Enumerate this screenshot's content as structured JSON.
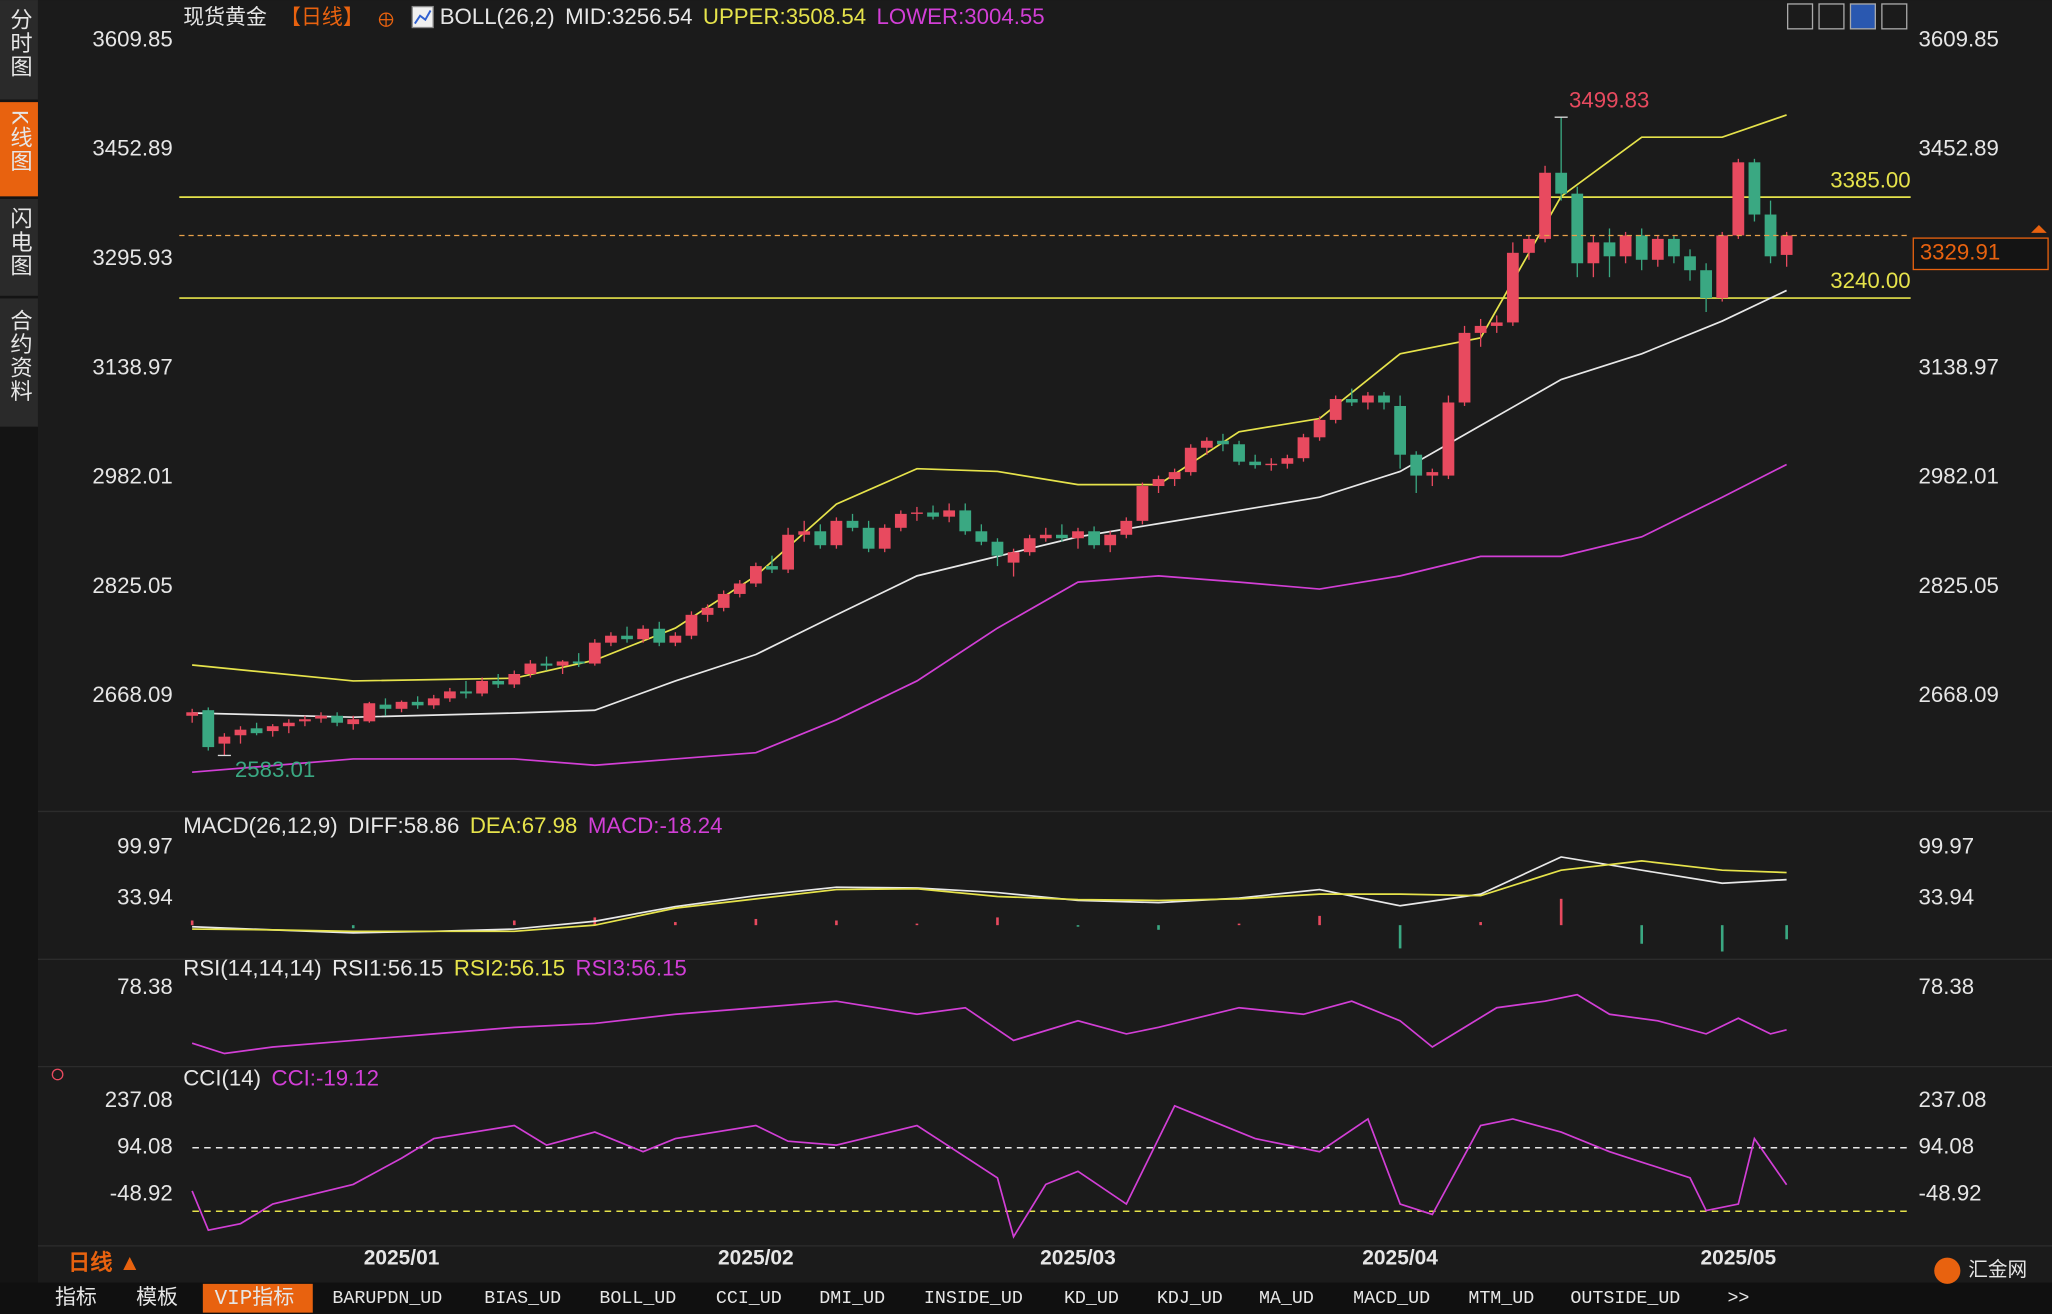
{
  "header": {
    "symbol": "现货黄金",
    "period": "【日线】"
  },
  "sidebar": [
    "分时图",
    "K线图",
    "闪电图",
    "合约资料"
  ],
  "footer": {
    "period": "日线 ▲",
    "logo": "汇金网",
    "tabs": [
      "指标",
      "模板",
      "VIP指标",
      "BARUPDN_UD",
      "BIAS_UD",
      "BOLL_UD",
      "CCI_UD",
      "DMI_UD",
      "INSIDE_UD",
      "KD_UD",
      "KDJ_UD",
      "MA_UD",
      "MACD_UD",
      "MTM_UD",
      "OUTSIDE_UD",
      ">>"
    ]
  },
  "chart_data": [
    {
      "type": "candlestick",
      "title": "BOLL(26,2)",
      "up_color": "#e84a5f",
      "down_color": "#3aa882",
      "xlim": [
        -0.8,
        106.7
      ],
      "xticks": [
        {
          "value": 13,
          "label": "2025/01"
        },
        {
          "value": 35,
          "label": "2025/02"
        },
        {
          "value": 55,
          "label": "2025/03"
        },
        {
          "value": 75,
          "label": "2025/04"
        },
        {
          "value": 96,
          "label": "2025/05"
        }
      ],
      "ylim": [
        2512.0,
        3630.5
      ],
      "yticks": [
        3609.85,
        3452.89,
        3295.93,
        3138.97,
        2982.01,
        2825.05,
        2668.09
      ],
      "high_label": 3499.83,
      "low_label": 2583.01,
      "levels": [
        {
          "value": 3385,
          "label": "3385.00"
        },
        {
          "value": 3240,
          "label": "3240.00"
        }
      ],
      "level_color": "#e6e34b",
      "candles": [
        [
          2640,
          2650,
          2630,
          2645
        ],
        [
          2648,
          2652,
          2590,
          2595
        ],
        [
          2600,
          2615,
          2583.01,
          2610
        ],
        [
          2612,
          2625,
          2600,
          2620
        ],
        [
          2622,
          2630,
          2612,
          2615
        ],
        [
          2618,
          2628,
          2610,
          2625
        ],
        [
          2625,
          2635,
          2615,
          2630
        ],
        [
          2632,
          2640,
          2625,
          2635
        ],
        [
          2636,
          2645,
          2630,
          2640
        ],
        [
          2640,
          2645,
          2625,
          2630
        ],
        [
          2628,
          2640,
          2620,
          2635
        ],
        [
          2632,
          2660,
          2630,
          2658
        ],
        [
          2656,
          2665,
          2640,
          2650
        ],
        [
          2650,
          2662,
          2645,
          2660
        ],
        [
          2660,
          2668,
          2650,
          2655
        ],
        [
          2655,
          2670,
          2650,
          2665
        ],
        [
          2665,
          2680,
          2660,
          2675
        ],
        [
          2675,
          2690,
          2665,
          2672
        ],
        [
          2672,
          2695,
          2668,
          2690
        ],
        [
          2690,
          2700,
          2680,
          2685
        ],
        [
          2685,
          2705,
          2680,
          2700
        ],
        [
          2700,
          2720,
          2695,
          2715
        ],
        [
          2715,
          2725,
          2705,
          2712
        ],
        [
          2712,
          2720,
          2700,
          2718
        ],
        [
          2718,
          2730,
          2710,
          2715
        ],
        [
          2715,
          2750,
          2712,
          2745
        ],
        [
          2745,
          2760,
          2740,
          2755
        ],
        [
          2755,
          2768,
          2745,
          2750
        ],
        [
          2750,
          2770,
          2745,
          2765
        ],
        [
          2765,
          2775,
          2740,
          2745
        ],
        [
          2745,
          2760,
          2740,
          2755
        ],
        [
          2755,
          2790,
          2750,
          2785
        ],
        [
          2785,
          2800,
          2775,
          2795
        ],
        [
          2795,
          2820,
          2790,
          2815
        ],
        [
          2815,
          2835,
          2810,
          2830
        ],
        [
          2830,
          2860,
          2825,
          2855
        ],
        [
          2855,
          2870,
          2845,
          2850
        ],
        [
          2850,
          2910,
          2845,
          2900
        ],
        [
          2900,
          2920,
          2890,
          2905
        ],
        [
          2905,
          2915,
          2880,
          2885
        ],
        [
          2885,
          2925,
          2880,
          2920
        ],
        [
          2920,
          2930,
          2905,
          2910
        ],
        [
          2910,
          2920,
          2875,
          2880
        ],
        [
          2880,
          2915,
          2875,
          2910
        ],
        [
          2910,
          2935,
          2905,
          2930
        ],
        [
          2930,
          2940,
          2920,
          2932
        ],
        [
          2932,
          2942,
          2922,
          2926
        ],
        [
          2926,
          2945,
          2918,
          2935
        ],
        [
          2935,
          2945,
          2900,
          2905
        ],
        [
          2905,
          2915,
          2885,
          2890
        ],
        [
          2890,
          2895,
          2855,
          2870
        ],
        [
          2860,
          2880,
          2840,
          2875
        ],
        [
          2875,
          2900,
          2870,
          2895
        ],
        [
          2895,
          2910,
          2890,
          2900
        ],
        [
          2900,
          2915,
          2890,
          2895
        ],
        [
          2895,
          2910,
          2880,
          2905
        ],
        [
          2905,
          2912,
          2880,
          2885
        ],
        [
          2885,
          2905,
          2875,
          2900
        ],
        [
          2900,
          2925,
          2895,
          2920
        ],
        [
          2920,
          2975,
          2915,
          2970
        ],
        [
          2970,
          2985,
          2960,
          2980
        ],
        [
          2980,
          2995,
          2970,
          2990
        ],
        [
          2990,
          3030,
          2985,
          3025
        ],
        [
          3025,
          3040,
          3015,
          3035
        ],
        [
          3035,
          3045,
          3020,
          3030
        ],
        [
          3030,
          3035,
          3000,
          3005
        ],
        [
          3005,
          3015,
          2995,
          3000
        ],
        [
          3000,
          3010,
          2992,
          3002
        ],
        [
          3002,
          3015,
          2995,
          3010
        ],
        [
          3010,
          3045,
          3005,
          3040
        ],
        [
          3040,
          3070,
          3035,
          3065
        ],
        [
          3065,
          3100,
          3060,
          3095
        ],
        [
          3095,
          3110,
          3085,
          3090
        ],
        [
          3090,
          3105,
          3080,
          3100
        ],
        [
          3100,
          3105,
          3080,
          3090
        ],
        [
          3085,
          3100,
          2995,
          3015
        ],
        [
          3015,
          3020,
          2960,
          2985
        ],
        [
          2985,
          2995,
          2970,
          2990
        ],
        [
          2985,
          3100,
          2980,
          3090
        ],
        [
          3090,
          3200,
          3085,
          3190
        ],
        [
          3190,
          3210,
          3170,
          3200
        ],
        [
          3200,
          3215,
          3190,
          3205
        ],
        [
          3205,
          3320,
          3200,
          3305
        ],
        [
          3305,
          3330,
          3295,
          3325
        ],
        [
          3325,
          3430,
          3320,
          3420
        ],
        [
          3420,
          3499.83,
          3380,
          3390
        ],
        [
          3390,
          3400,
          3270,
          3290
        ],
        [
          3290,
          3330,
          3270,
          3320
        ],
        [
          3320,
          3340,
          3270,
          3300
        ],
        [
          3300,
          3335,
          3290,
          3330
        ],
        [
          3330,
          3340,
          3280,
          3295
        ],
        [
          3295,
          3330,
          3285,
          3325
        ],
        [
          3325,
          3330,
          3290,
          3300
        ],
        [
          3300,
          3310,
          3265,
          3280
        ],
        [
          3280,
          3290,
          3220,
          3240
        ],
        [
          3240,
          3335,
          3235,
          3330
        ],
        [
          3330,
          3440,
          3325,
          3435
        ],
        [
          3435,
          3440,
          3350,
          3360
        ],
        [
          3360,
          3380,
          3290,
          3300
        ],
        [
          3302,
          3335,
          3285,
          3329.91
        ]
      ],
      "series": [
        {
          "name": "MID:3256.54",
          "color": "#e8e8e8",
          "x": [
            0,
            10,
            20,
            25,
            30,
            35,
            40,
            45,
            50,
            55,
            60,
            65,
            70,
            75,
            80,
            85,
            90,
            95,
            99
          ],
          "values": [
            2644,
            2638,
            2644,
            2648,
            2690,
            2728,
            2785,
            2841,
            2869,
            2897,
            2916,
            2935,
            2954,
            2991,
            3057,
            3123,
            3160,
            3207,
            3251
          ]
        },
        {
          "name": "UPPER:3508.54",
          "color": "#e6e34b",
          "x": [
            0,
            10,
            20,
            25,
            30,
            35,
            40,
            45,
            50,
            55,
            60,
            65,
            70,
            75,
            80,
            85,
            90,
            95,
            99
          ],
          "values": [
            2713,
            2690,
            2694,
            2720,
            2766,
            2841,
            2944,
            2995,
            2991,
            2972,
            2972,
            3048,
            3067,
            3160,
            3183,
            3386,
            3471,
            3471,
            3503
          ]
        },
        {
          "name": "LOWER:3004.55",
          "color": "#d23fd6",
          "x": [
            0,
            10,
            20,
            25,
            30,
            35,
            40,
            45,
            50,
            55,
            60,
            65,
            70,
            75,
            80,
            85,
            90,
            95,
            99
          ],
          "values": [
            2559,
            2578,
            2578,
            2569,
            2578,
            2587,
            2634,
            2690,
            2766,
            2832,
            2841,
            2832,
            2822,
            2841,
            2869,
            2869,
            2897,
            2954,
            3001
          ]
        }
      ]
    },
    {
      "type": "macd",
      "title": "MACD(26,12,9)",
      "up_color": "#e84a5f",
      "down_color": "#3aa882",
      "xlim": [
        -0.8,
        106.7
      ],
      "ylim": [
        -39,
        113
      ],
      "yticks": [
        99.97,
        33.94
      ],
      "histogram": {
        "name": "MACD:-18.24",
        "color": "#d23fd6",
        "x": [
          0,
          5,
          10,
          15,
          20,
          25,
          30,
          35,
          40,
          45,
          50,
          55,
          60,
          65,
          70,
          75,
          80,
          85,
          90,
          95,
          99
        ],
        "values": [
          6,
          0,
          -4,
          0,
          6,
          10,
          4,
          8,
          6,
          2,
          10,
          -2,
          -6,
          2,
          12,
          -30,
          4,
          34,
          -24,
          -34,
          -18.24
        ]
      },
      "series": [
        {
          "name": "DIFF:58.86",
          "color": "#e8e8e8",
          "x": [
            0,
            5,
            10,
            15,
            20,
            25,
            30,
            35,
            40,
            45,
            50,
            55,
            60,
            65,
            70,
            75,
            80,
            85,
            90,
            95,
            99
          ],
          "values": [
            -2,
            -6,
            -10,
            -8,
            -5,
            5,
            24,
            38,
            49,
            48,
            42,
            32,
            29,
            35,
            46,
            25,
            40,
            88,
            71,
            54,
            58.86
          ]
        },
        {
          "name": "DEA:67.98",
          "color": "#e6e34b",
          "x": [
            0,
            5,
            10,
            15,
            20,
            25,
            30,
            35,
            40,
            45,
            50,
            55,
            60,
            65,
            70,
            75,
            80,
            85,
            90,
            95,
            99
          ],
          "values": [
            -5,
            -6,
            -8,
            -8,
            -8,
            0,
            22,
            34,
            46,
            47,
            37,
            33,
            32,
            34,
            40,
            40,
            38,
            71,
            83,
            71,
            67.98
          ]
        }
      ]
    },
    {
      "type": "line",
      "title": "RSI(14,14,14)",
      "xlim": [
        -0.8,
        106.7
      ],
      "ylim": [
        40,
        82
      ],
      "yticks": [
        78.38
      ],
      "extra_labels": [
        {
          "text": "RSI1:56.15",
          "color": "#e8e8e8"
        },
        {
          "text": "RSI2:56.15",
          "color": "#e6e34b"
        }
      ],
      "series": [
        {
          "name": "RSI3:56.15",
          "color": "#d23fd6",
          "x": [
            0,
            2,
            5,
            10,
            15,
            20,
            25,
            30,
            35,
            40,
            45,
            48,
            51,
            55,
            58,
            60,
            65,
            69,
            72,
            75,
            77,
            79,
            81,
            84,
            86,
            88,
            91,
            94,
            96,
            98,
            99
          ],
          "values": [
            49,
            43.5,
            47,
            50.5,
            54,
            57.5,
            59.6,
            64.5,
            68,
            71.5,
            64.5,
            68,
            50.5,
            61,
            54,
            57.5,
            68,
            64.5,
            71.5,
            61,
            47,
            57.5,
            68,
            71.5,
            75,
            64.5,
            61,
            54,
            62.4,
            54,
            56.15
          ]
        }
      ]
    },
    {
      "type": "line",
      "title": "CCI(14)",
      "xlim": [
        -0.8,
        106.7
      ],
      "ylim": [
        -198,
        262
      ],
      "yticks": [
        237.08,
        94.08,
        -48.92
      ],
      "ref_lines": [
        {
          "value": 94.08,
          "color": "#e8e8e8"
        },
        {
          "value": -100,
          "color": "#e6e34b"
        }
      ],
      "series": [
        {
          "name": "CCI:-19.12",
          "color": "#d23fd6",
          "x": [
            0,
            1,
            3,
            5,
            10,
            13,
            15,
            20,
            22,
            25,
            28,
            30,
            35,
            37,
            40,
            45,
            50,
            51,
            53,
            55,
            58,
            61,
            63,
            66,
            70,
            73,
            75,
            77,
            80,
            82,
            85,
            88,
            90,
            93,
            94,
            96,
            97,
            99
          ],
          "values": [
            -38,
            -158,
            -138,
            -78,
            -18,
            62,
            122,
            162,
            102,
            142,
            82,
            122,
            162,
            114,
            102,
            162,
            2,
            -178,
            -18,
            22,
            -78,
            222,
            182,
            122,
            82,
            182,
            -78,
            -110,
            162,
            182,
            142,
            82,
            50,
            2,
            -98,
            -78,
            122,
            -19.12
          ]
        }
      ]
    }
  ]
}
